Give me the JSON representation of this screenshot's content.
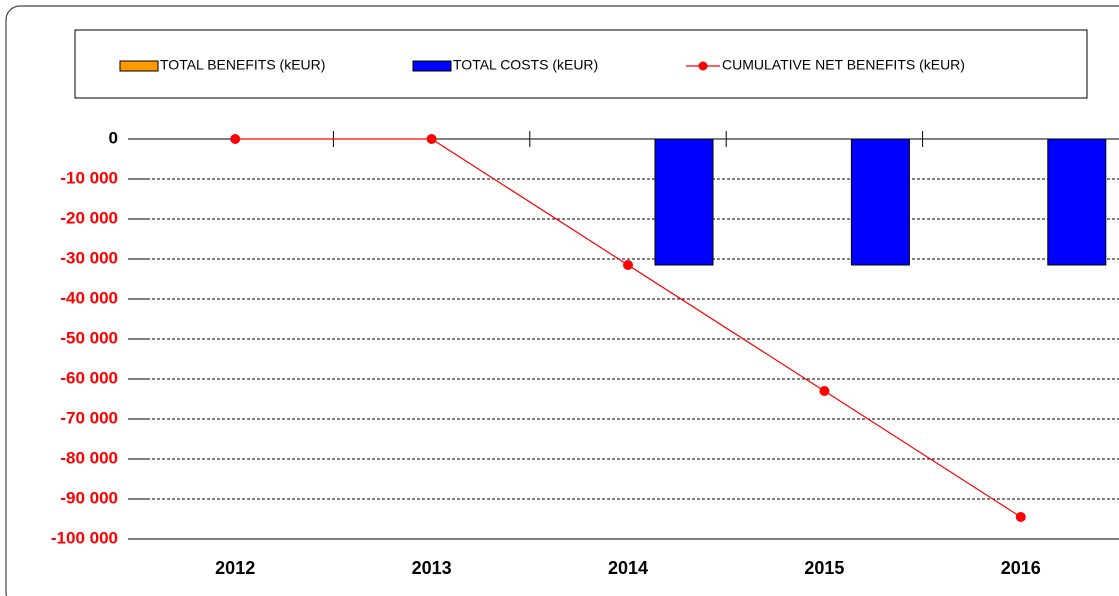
{
  "chart_data": {
    "type": "bar_line",
    "categories": [
      "2012",
      "2013",
      "2014",
      "2015",
      "2016"
    ],
    "series": [
      {
        "name": "TOTAL BENEFITS (kEUR)",
        "type": "bar",
        "color": "#ff9900",
        "values": [
          0,
          0,
          0,
          0,
          0
        ]
      },
      {
        "name": "TOTAL COSTS (kEUR)",
        "type": "bar",
        "color": "#0000ff",
        "values": [
          0,
          0,
          -31500,
          -31500,
          -31500
        ]
      },
      {
        "name": "CUMULATIVE NET BENEFITS (kEUR)",
        "type": "line",
        "color": "#ff0000",
        "values": [
          0,
          0,
          -31500,
          -63000,
          -94500
        ]
      }
    ],
    "ylim": [
      -100000,
      0
    ],
    "yticks": [
      0,
      {
        "value": -10000,
        "label": "-10 000"
      },
      {
        "value": -20000,
        "label": "-20 000"
      },
      {
        "value": -30000,
        "label": "-30 000"
      },
      {
        "value": -40000,
        "label": "-40 000"
      },
      {
        "value": -50000,
        "label": "-50 000"
      },
      {
        "value": -60000,
        "label": "-60 000"
      },
      {
        "value": -70000,
        "label": "-70 000"
      },
      {
        "value": -80000,
        "label": "-80 000"
      },
      {
        "value": -90000,
        "label": "-90 000"
      },
      {
        "value": -100000,
        "label": "-100 000"
      }
    ],
    "grid": true,
    "negative_tick_color": "#ff0000",
    "tick_color": "#000000",
    "legend": "top"
  }
}
